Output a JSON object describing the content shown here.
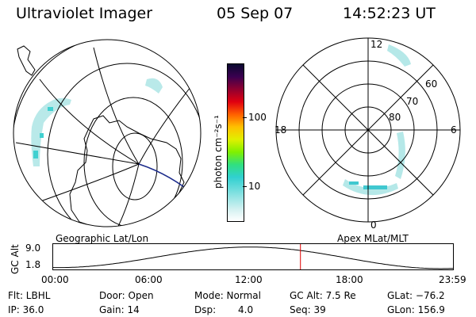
{
  "header": {
    "instrument": "Ultraviolet Imager",
    "date": "05 Sep 07",
    "time": "14:52:23 UT"
  },
  "colorbar": {
    "unit_label": "photon cm⁻²s⁻¹",
    "ticks": [
      "100",
      "10"
    ]
  },
  "left_panel": {
    "label": "Geographic Lat/Lon"
  },
  "right_panel": {
    "label": "Apex MLat/MLT",
    "mlt_labels": {
      "top": "12",
      "bottom": "0",
      "left": "18",
      "right": "6"
    },
    "mlat_labels": [
      "60",
      "70",
      "80"
    ]
  },
  "altitude_plot": {
    "ylabel": "GC Alt",
    "y_ticks": [
      "9.0",
      "1.8"
    ],
    "x_ticks": [
      "00:00",
      "06:00",
      "12:00",
      "18:00",
      "23:59"
    ],
    "current_time_fraction": 0.618
  },
  "status": {
    "filter": "Flt: LBHL",
    "ip": "IP: 36.0",
    "door": "Door: Open",
    "gain": "Gain: 14",
    "mode": "Mode: Normal",
    "dsp_label": "Dsp:",
    "dsp_value": "4.0",
    "gc_alt": "GC Alt: 7.5 Re",
    "seq": "Seq: 39",
    "glat": "GLat: −76.2",
    "glon": "GLon: 156.9"
  }
}
